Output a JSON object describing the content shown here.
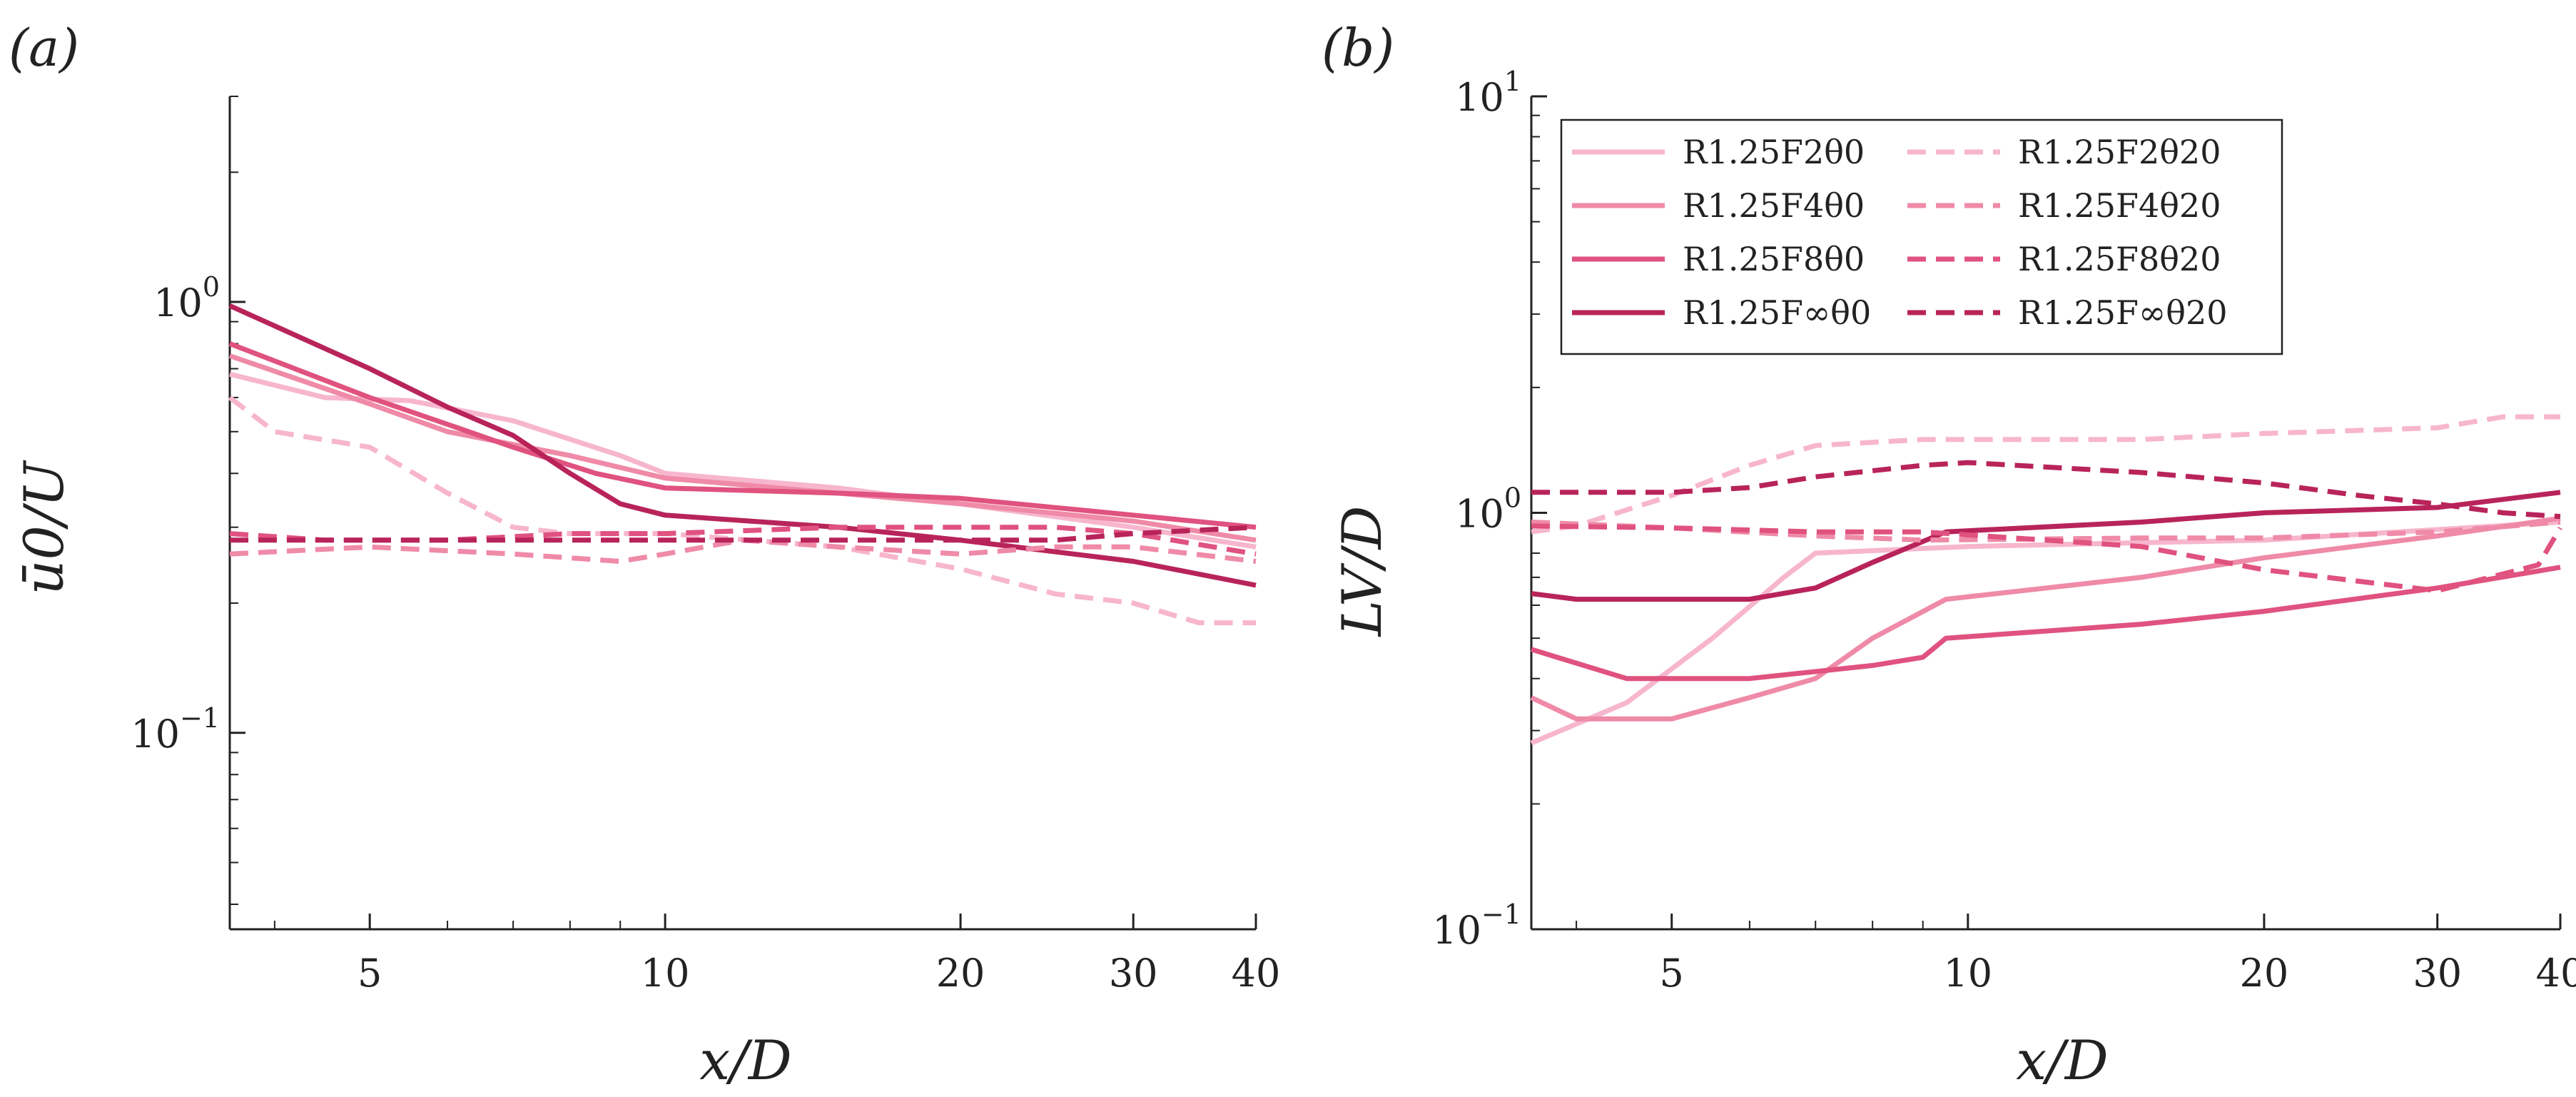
{
  "colors": {
    "F2": "#f7b6cd",
    "F4": "#ef8aa8",
    "F8": "#e0527f",
    "Finf": "#b8245a"
  },
  "chart_data": [
    {
      "type": "line",
      "panel": "(a)",
      "xlabel": "x/D",
      "ylabel": "ū0/U",
      "xscale": "log",
      "yscale": "log",
      "xlim": [
        3.6,
        40
      ],
      "ylim": [
        0.035,
        3.0
      ],
      "xticks": [
        5,
        10,
        20,
        30,
        40
      ],
      "xtick_labels": [
        "5",
        "10",
        "20",
        "30",
        "40"
      ],
      "yticks": [
        0.1,
        1
      ],
      "ytick_labels": [
        {
          "base": "10",
          "exp": "−1"
        },
        {
          "base": "10",
          "exp": "0"
        }
      ],
      "series": [
        {
          "name": "R1.25F2θ0",
          "color": "F2",
          "dash": false,
          "x": [
            3.6,
            4.5,
            5.5,
            7,
            9,
            10,
            15,
            20,
            30,
            40
          ],
          "y": [
            0.68,
            0.6,
            0.59,
            0.53,
            0.44,
            0.4,
            0.37,
            0.34,
            0.3,
            0.27
          ]
        },
        {
          "name": "R1.25F4θ0",
          "color": "F4",
          "dash": false,
          "x": [
            3.6,
            5,
            6,
            8,
            10,
            15,
            20,
            30,
            40
          ],
          "y": [
            0.75,
            0.58,
            0.5,
            0.44,
            0.39,
            0.36,
            0.34,
            0.31,
            0.28
          ]
        },
        {
          "name": "R1.25F8θ0",
          "color": "F8",
          "dash": false,
          "x": [
            3.6,
            5,
            6,
            7,
            8.5,
            10,
            15,
            20,
            30,
            40
          ],
          "y": [
            0.8,
            0.6,
            0.52,
            0.46,
            0.4,
            0.37,
            0.36,
            0.35,
            0.32,
            0.3
          ]
        },
        {
          "name": "R1.25F∞θ0",
          "color": "Finf",
          "dash": false,
          "x": [
            3.6,
            5,
            6,
            7,
            8,
            9,
            10,
            15,
            20,
            30,
            40
          ],
          "y": [
            0.98,
            0.7,
            0.57,
            0.49,
            0.4,
            0.34,
            0.32,
            0.3,
            0.28,
            0.25,
            0.22
          ]
        },
        {
          "name": "R1.25F2θ20",
          "color": "F2",
          "dash": true,
          "x": [
            3.6,
            4,
            5,
            6,
            7,
            8,
            10,
            15,
            20,
            25,
            30,
            35,
            40
          ],
          "y": [
            0.6,
            0.5,
            0.46,
            0.36,
            0.3,
            0.29,
            0.29,
            0.27,
            0.24,
            0.21,
            0.2,
            0.18,
            0.18
          ]
        },
        {
          "name": "R1.25F4θ20",
          "color": "F4",
          "dash": true,
          "x": [
            3.6,
            5,
            7,
            9,
            10,
            12,
            15,
            20,
            25,
            30,
            40
          ],
          "y": [
            0.26,
            0.27,
            0.26,
            0.25,
            0.26,
            0.28,
            0.27,
            0.26,
            0.27,
            0.27,
            0.25
          ]
        },
        {
          "name": "R1.25F8θ20",
          "color": "F8",
          "dash": true,
          "x": [
            3.6,
            4.5,
            6,
            8,
            10,
            15,
            20,
            25,
            30,
            40
          ],
          "y": [
            0.29,
            0.28,
            0.28,
            0.29,
            0.29,
            0.3,
            0.3,
            0.3,
            0.29,
            0.26
          ]
        },
        {
          "name": "R1.25F∞θ20",
          "color": "Finf",
          "dash": true,
          "x": [
            3.6,
            4,
            6,
            8,
            10,
            15,
            20,
            25,
            30,
            40
          ],
          "y": [
            0.28,
            0.28,
            0.28,
            0.28,
            0.28,
            0.28,
            0.28,
            0.28,
            0.29,
            0.3
          ]
        }
      ]
    },
    {
      "type": "line",
      "panel": "(b)",
      "xlabel": "x/D",
      "ylabel": "LV/D",
      "xscale": "log",
      "yscale": "log",
      "xlim": [
        3.6,
        40
      ],
      "ylim": [
        0.1,
        10
      ],
      "xticks": [
        5,
        10,
        20,
        30,
        40
      ],
      "xtick_labels": [
        "5",
        "10",
        "20",
        "30",
        "40"
      ],
      "yticks": [
        0.1,
        1,
        10
      ],
      "ytick_labels": [
        {
          "base": "10",
          "exp": "−1"
        },
        {
          "base": "10",
          "exp": "0"
        },
        {
          "base": "10",
          "exp": "1"
        }
      ],
      "legend": "top-right",
      "series": [
        {
          "name": "R1.25F2θ0",
          "color": "F2",
          "dash": false,
          "x": [
            3.6,
            4.5,
            5.5,
            6.5,
            7,
            10,
            20,
            40
          ],
          "y": [
            0.28,
            0.35,
            0.5,
            0.7,
            0.8,
            0.83,
            0.86,
            0.95
          ]
        },
        {
          "name": "R1.25F4θ0",
          "color": "F4",
          "dash": false,
          "x": [
            3.6,
            4,
            5,
            6,
            7,
            8,
            9.5,
            15,
            20,
            30,
            40
          ],
          "y": [
            0.36,
            0.32,
            0.32,
            0.36,
            0.4,
            0.5,
            0.62,
            0.7,
            0.78,
            0.88,
            0.97
          ]
        },
        {
          "name": "R1.25F8θ0",
          "color": "F8",
          "dash": false,
          "x": [
            3.6,
            4.5,
            6,
            8,
            9,
            9.5,
            15,
            20,
            30,
            40
          ],
          "y": [
            0.47,
            0.4,
            0.4,
            0.43,
            0.45,
            0.5,
            0.54,
            0.58,
            0.66,
            0.74
          ]
        },
        {
          "name": "R1.25F∞θ0",
          "color": "Finf",
          "dash": false,
          "x": [
            3.6,
            4,
            6,
            7,
            8,
            9.5,
            15,
            20,
            30,
            40
          ],
          "y": [
            0.64,
            0.62,
            0.62,
            0.66,
            0.76,
            0.9,
            0.95,
            1.0,
            1.03,
            1.12
          ]
        },
        {
          "name": "R1.25F2θ20",
          "color": "F2",
          "dash": true,
          "x": [
            3.6,
            4,
            5,
            6,
            7,
            9,
            15,
            20,
            30,
            35,
            40
          ],
          "y": [
            0.9,
            0.93,
            1.1,
            1.3,
            1.45,
            1.5,
            1.5,
            1.55,
            1.6,
            1.7,
            1.7
          ]
        },
        {
          "name": "R1.25F4θ20",
          "color": "F4",
          "dash": true,
          "x": [
            3.6,
            5,
            7,
            9,
            15,
            20,
            30,
            40
          ],
          "y": [
            0.95,
            0.92,
            0.88,
            0.86,
            0.87,
            0.87,
            0.9,
            0.95
          ]
        },
        {
          "name": "R1.25F8θ20",
          "color": "F8",
          "dash": true,
          "x": [
            3.6,
            5,
            7,
            9,
            15,
            20,
            30,
            38,
            40
          ],
          "y": [
            0.93,
            0.92,
            0.9,
            0.9,
            0.83,
            0.73,
            0.65,
            0.75,
            0.92
          ]
        },
        {
          "name": "R1.25F∞θ20",
          "color": "Finf",
          "dash": true,
          "x": [
            3.6,
            5,
            6,
            7,
            9,
            10,
            15,
            20,
            25,
            30,
            35,
            40
          ],
          "y": [
            1.12,
            1.12,
            1.15,
            1.22,
            1.3,
            1.32,
            1.25,
            1.18,
            1.1,
            1.05,
            1.0,
            0.98
          ]
        }
      ]
    }
  ]
}
